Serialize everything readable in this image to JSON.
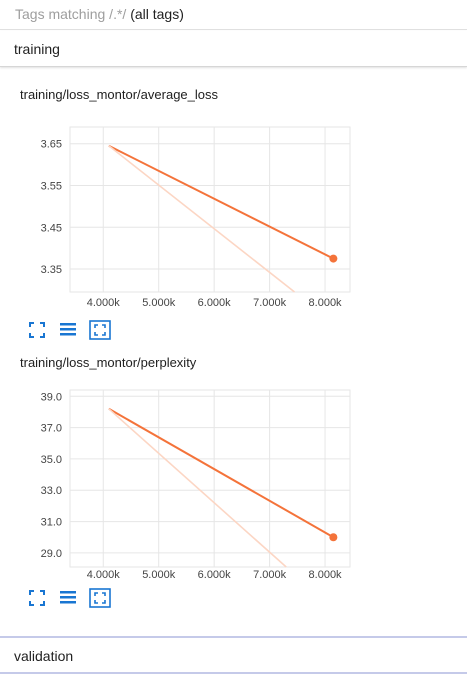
{
  "header": {
    "prefix": "Tags matching /",
    "regex": ".*",
    "suffix": "/ ",
    "all_tags": "(all tags)"
  },
  "categories": {
    "training": "training",
    "validation": "validation"
  },
  "colors": {
    "series": "#f4733a",
    "series_smoothed_ghost": "#fcd6c4",
    "grid": "#e6e6e6",
    "icon": "#1976d2"
  },
  "icons": [
    "fullscreen-icon",
    "data-list-icon",
    "fit-domain-icon"
  ],
  "chart_data": [
    {
      "type": "line",
      "title": "training/loss_montor/average_loss",
      "xlabel": "",
      "ylabel": "",
      "xlim": [
        3.4,
        8.45
      ],
      "ylim": [
        3.295,
        3.69
      ],
      "x_ticks": [
        "4.000k",
        "5.000k",
        "6.000k",
        "7.000k",
        "8.000k"
      ],
      "x_tick_values": [
        4.0,
        5.0,
        6.0,
        7.0,
        8.0
      ],
      "y_ticks": [
        "3.65",
        "3.55",
        "3.45",
        "3.35"
      ],
      "y_tick_values": [
        3.65,
        3.55,
        3.45,
        3.35
      ],
      "series": [
        {
          "values": [
            [
              4.1,
              3.645
            ],
            [
              8.15,
              3.375
            ]
          ],
          "end_marker": true
        },
        {
          "values": [
            [
              4.1,
              3.645
            ],
            [
              7.45,
              3.295
            ]
          ],
          "faded": true
        }
      ]
    },
    {
      "type": "line",
      "title": "training/loss_montor/perplexity",
      "xlabel": "",
      "ylabel": "",
      "xlim": [
        3.4,
        8.45
      ],
      "ylim": [
        28.1,
        39.4
      ],
      "x_ticks": [
        "4.000k",
        "5.000k",
        "6.000k",
        "7.000k",
        "8.000k"
      ],
      "x_tick_values": [
        4.0,
        5.0,
        6.0,
        7.0,
        8.0
      ],
      "y_ticks": [
        "39.0",
        "37.0",
        "35.0",
        "33.0",
        "31.0",
        "29.0"
      ],
      "y_tick_values": [
        39,
        37,
        35,
        33,
        31,
        29
      ],
      "series": [
        {
          "values": [
            [
              4.1,
              38.2
            ],
            [
              8.15,
              30.0
            ]
          ],
          "end_marker": true
        },
        {
          "values": [
            [
              4.1,
              38.2
            ],
            [
              7.3,
              28.1
            ]
          ],
          "faded": true
        }
      ]
    }
  ]
}
